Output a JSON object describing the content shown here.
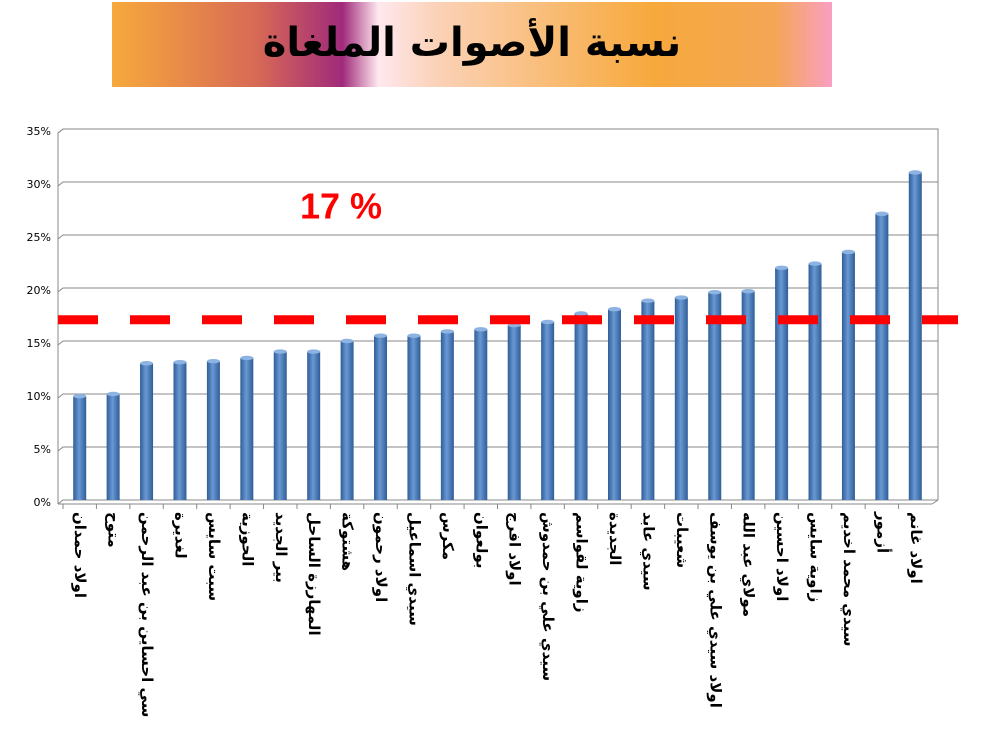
{
  "chart_data": {
    "type": "bar",
    "title": "نسبة الأصوات الملغاة",
    "categories": [
      "اولاد حمدان",
      "متوح",
      "سي احساين بن عبد الرحمن",
      "لغديرة",
      "سبت سايس",
      "الحوزية",
      "بير الجديد",
      "المهارزة الساحل",
      "هشتوكة",
      "اولاد رحمون",
      "سيدي اسماعيل",
      "مكرس",
      "بولعوان",
      "اولاد افرج",
      "سيدي علي بن حمدوش",
      "زاوية لقواسم",
      "الجديدة",
      "سيدي عابد",
      "شعيبات",
      "اولاد سيدي علي بن يوسف",
      "مولاي عبد الله",
      "اولاد احسين",
      "زاوية سايس",
      "سيدي محمد اخديم",
      "أزمور",
      "اولاد غانم"
    ],
    "values": [
      9.8,
      10,
      12.9,
      13,
      13.1,
      13.4,
      14,
      14,
      15,
      15.5,
      15.5,
      15.9,
      16.1,
      16.5,
      16.8,
      17.6,
      18,
      18.8,
      19.1,
      19.6,
      19.7,
      21.9,
      22.3,
      23.4,
      27,
      30.9
    ],
    "color": "#4a7ebb",
    "ylim": [
      0,
      35
    ],
    "yticks": [
      {
        "value": 0,
        "label": "0%"
      },
      {
        "value": 5,
        "label": "5%"
      },
      {
        "value": 10,
        "label": "10%"
      },
      {
        "value": 15,
        "label": "15%"
      },
      {
        "value": 20,
        "label": "20%"
      },
      {
        "value": 25,
        "label": "25%"
      },
      {
        "value": 30,
        "label": "30%"
      },
      {
        "value": 35,
        "label": "35%"
      }
    ],
    "grid": true,
    "reference_line": {
      "value": 17,
      "label": "17 %",
      "color": "#ff0000"
    }
  }
}
